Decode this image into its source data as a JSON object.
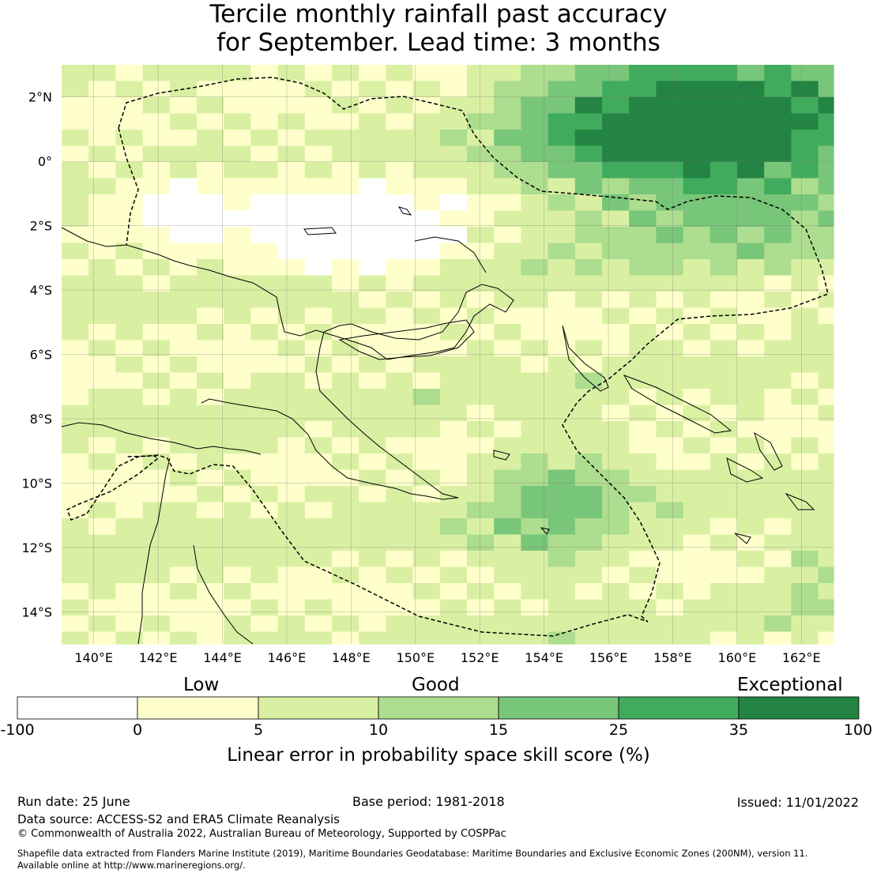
{
  "title_line1": "Tercile monthly rainfall past accuracy",
  "title_line2": "for September. Lead time: 3 months",
  "map": {
    "lon_ticks": [
      "140°E",
      "142°E",
      "144°E",
      "146°E",
      "148°E",
      "150°E",
      "152°E",
      "154°E",
      "156°E",
      "158°E",
      "160°E",
      "162°E"
    ],
    "lat_ticks": [
      "2°N",
      "0°",
      "2°S",
      "4°S",
      "6°S",
      "8°S",
      "10°S",
      "12°S",
      "14°S"
    ],
    "lon_range": [
      139.0,
      163.0
    ],
    "lat_range": [
      -15.0,
      3.0
    ]
  },
  "colorbar": {
    "categories": [
      "Low",
      "Good",
      "Exceptional"
    ],
    "tick_labels": [
      "-100",
      "0",
      "5",
      "10",
      "15",
      "25",
      "35",
      "100"
    ],
    "colors": [
      "#ffffff",
      "#ffffcc",
      "#d9f0a3",
      "#addd8e",
      "#78c679",
      "#41ab5d",
      "#238443"
    ],
    "label": "Linear error in probability space skill score (%)"
  },
  "footer": {
    "run_date": "Run date: 25 June",
    "base_period": "Base period: 1981-2018",
    "issued": "Issued: 11/01/2022",
    "data_source": "Data source: ACCESS-S2 and ERA5 Climate Reanalysis",
    "copyright": "© Commonwealth of Australia 2022, Australian Bureau of Meteorology, Supported by COSPPac",
    "shapefile_line1": "Shapefile data extracted from Flanders Marine Institute (2019), Maritime Boundaries Geodatabase: Maritime Boundaries and Exclusive Economic Zones (200NM), version 11.",
    "shapefile_line2": "Available online at http://www.marineregions.org/."
  }
}
